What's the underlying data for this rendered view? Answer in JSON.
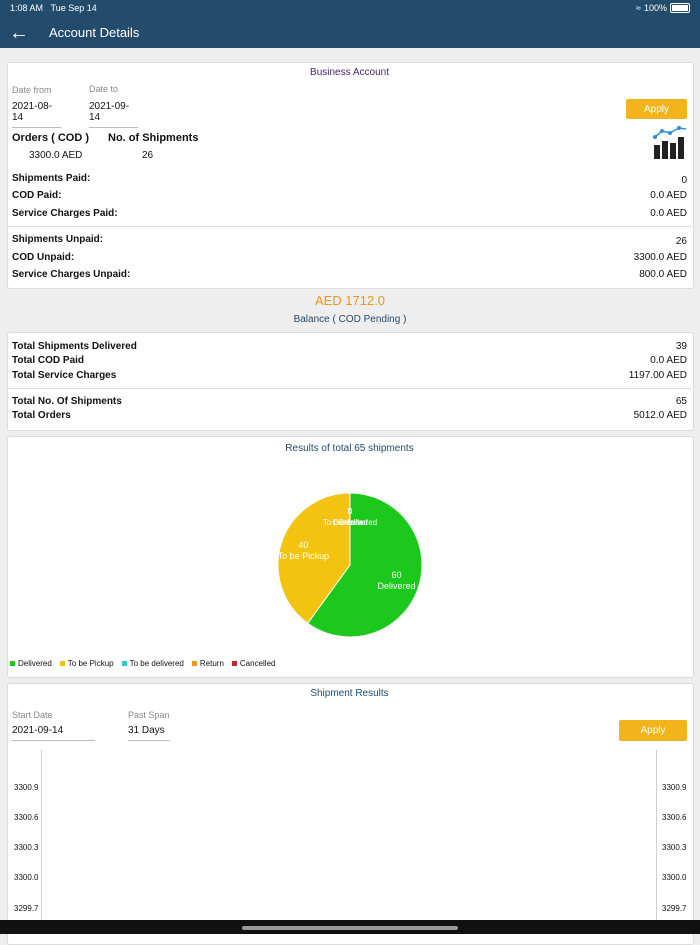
{
  "status": {
    "time": "1:08 AM",
    "date": "Tue Sep 14",
    "battery": "100%"
  },
  "header": {
    "title": "Account Details"
  },
  "business": {
    "title": "Business Account",
    "date_from_label": "Date from",
    "date_from": "2021-08-14",
    "date_to_label": "Date to",
    "date_to": "2021-09-14",
    "apply": "Apply",
    "orders_label": "Orders ( COD )",
    "orders_value": "3300.0 AED",
    "shipments_label": "No. of Shipments",
    "shipments_value": "26",
    "shipments_paid_label": "Shipments Paid:",
    "shipments_paid": "0",
    "cod_paid_label": "COD Paid:",
    "cod_paid": "0.0 AED",
    "service_paid_label": "Service Charges Paid:",
    "service_paid": "0.0 AED",
    "shipments_unpaid_label": "Shipments Unpaid:",
    "shipments_unpaid": "26",
    "cod_unpaid_label": "COD Unpaid:",
    "cod_unpaid": "3300.0 AED",
    "service_unpaid_label": "Service Charges Unpaid:",
    "service_unpaid": "800.0 AED"
  },
  "balance": {
    "amount": "AED 1712.0",
    "label": "Balance ( COD Pending )"
  },
  "totals": {
    "delivered_label": "Total Shipments Delivered",
    "delivered": "39",
    "cod_paid_label": "Total COD Paid",
    "cod_paid": "0.0 AED",
    "service_label": "Total Service Charges",
    "service": "1197.00 AED",
    "shipments_label": "Total No. Of Shipments",
    "shipments": "65",
    "orders_label": "Total Orders",
    "orders": "5012.0 AED"
  },
  "results": {
    "title": "Results of total 65 shipments",
    "legend": [
      "Delivered",
      "To be Pickup",
      "To be delivered",
      "Return",
      "Cancelled"
    ]
  },
  "chart_data": {
    "type": "pie",
    "title": "Results of total 65 shipments",
    "slices": [
      {
        "label": "Delivered",
        "value": 60,
        "color": "#1cc81c"
      },
      {
        "label": "To be Pickup",
        "value": 40,
        "color": "#f2c40f"
      },
      {
        "label": "To be delivered",
        "value": 0,
        "color": "#33c7d6"
      },
      {
        "label": "Return",
        "value": 0,
        "color": "#f2941a"
      },
      {
        "label": "Cancelled",
        "value": 0,
        "color": "#c0282d"
      }
    ]
  },
  "shipment_results": {
    "title": "Shipment Results",
    "start_label": "Start Date",
    "start": "2021-09-14",
    "span_label": "Past Span",
    "span": "31 Days",
    "apply": "Apply",
    "y_ticks": [
      "3300.9",
      "3300.6",
      "3300.3",
      "3300.0",
      "3299.7"
    ]
  }
}
